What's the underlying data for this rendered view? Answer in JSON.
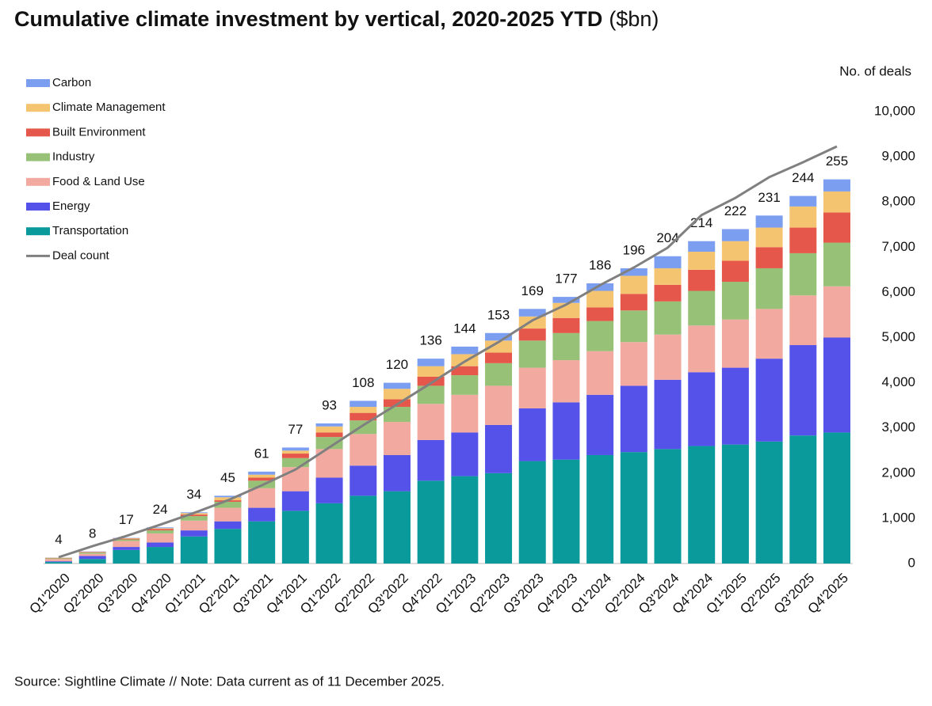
{
  "chart_data": {
    "type": "stacked-bar-line",
    "title": "Cumulative climate investment by vertical, 2020-2025 YTD",
    "unit": "($bn)",
    "y2_label": "No. of deals",
    "source": "Source: Sightline Climate  //  Note: Data current as of 11 December 2025.",
    "categories": [
      "Q1'2020",
      "Q2'2020",
      "Q3'2020",
      "Q4'2020",
      "Q1'2021",
      "Q2'2021",
      "Q3'2021",
      "Q4'2021",
      "Q1'2022",
      "Q2'2022",
      "Q3'2022",
      "Q4'2022",
      "Q1'2023",
      "Q2'2023",
      "Q3'2023",
      "Q4'2023",
      "Q1'2024",
      "Q2'2024",
      "Q3'2024",
      "Q4'2024",
      "Q1'2025",
      "Q2'2025",
      "Q3'2025",
      "Q4'2025"
    ],
    "series": [
      {
        "name": "Transportation",
        "color": "#0a9a9c",
        "values": [
          1,
          3,
          9,
          11,
          18,
          23,
          28,
          35,
          40,
          45,
          48,
          55,
          58,
          60,
          68,
          69,
          72,
          74,
          76,
          78,
          79,
          81,
          85,
          87
        ]
      },
      {
        "name": "Energy",
        "color": "#5552ea",
        "values": [
          0.5,
          2,
          2,
          3,
          4,
          5,
          9,
          13,
          17,
          20,
          24,
          27,
          29,
          32,
          35,
          38,
          40,
          44,
          46,
          49,
          51,
          55,
          60,
          63
        ]
      },
      {
        "name": "Food & Land Use",
        "color": "#f2a99f",
        "values": [
          1.5,
          1.5,
          4,
          6,
          6.5,
          9,
          13,
          16,
          19,
          21,
          22,
          24,
          25,
          26,
          27,
          28,
          29,
          29,
          30,
          31,
          32,
          33,
          33,
          34
        ]
      },
      {
        "name": "Industry",
        "color": "#97c177",
        "values": [
          0.5,
          0.8,
          1,
          2,
          3,
          4,
          5,
          6,
          8,
          9,
          10,
          12,
          13,
          15,
          18,
          18,
          20,
          21,
          22,
          23,
          25,
          27,
          28,
          29
        ]
      },
      {
        "name": "Built Environment",
        "color": "#e5574a",
        "values": [
          0.2,
          0.3,
          0.5,
          1,
          1,
          1,
          2,
          3,
          3,
          5,
          5,
          6,
          6,
          7,
          8,
          10,
          9,
          11,
          11,
          14,
          14,
          14,
          17,
          20
        ]
      },
      {
        "name": "Climate Management",
        "color": "#f4c471",
        "values": [
          0.2,
          0.2,
          0.3,
          0.5,
          1,
          2,
          2,
          2,
          4,
          4,
          7,
          7,
          8,
          8,
          8,
          10,
          11,
          12,
          11,
          12,
          13,
          13,
          14,
          14
        ]
      },
      {
        "name": "Carbon",
        "color": "#7b9ef0",
        "values": [
          0.1,
          0.2,
          0.2,
          0.5,
          0.5,
          1,
          2,
          2,
          2,
          4,
          4,
          5,
          5,
          5,
          5,
          4,
          5,
          5,
          8,
          7,
          8,
          8,
          7,
          8
        ]
      },
      {
        "name": "Deal count",
        "color": "#808080",
        "axis": "y2",
        "type": "line",
        "values": [
          140,
          385,
          610,
          860,
          1120,
          1400,
          1730,
          2080,
          2570,
          3060,
          3520,
          3990,
          4470,
          4900,
          5380,
          5730,
          6160,
          6550,
          6990,
          7710,
          8090,
          8550,
          8880,
          9230
        ]
      }
    ],
    "totals": [
      4,
      8,
      17,
      24,
      34,
      45,
      61,
      77,
      93,
      108,
      120,
      136,
      144,
      153,
      169,
      177,
      186,
      196,
      204,
      214,
      222,
      231,
      244,
      255
    ],
    "ylim": [
      0,
      300
    ],
    "y2lim": [
      0,
      10000
    ],
    "y2ticks": [
      {
        "value": 0,
        "label": "0"
      },
      {
        "value": 1000,
        "label": "1,000"
      },
      {
        "value": 2000,
        "label": "2,000"
      },
      {
        "value": 3000,
        "label": "3,000"
      },
      {
        "value": 4000,
        "label": "4,000"
      },
      {
        "value": 5000,
        "label": "5,000"
      },
      {
        "value": 6000,
        "label": "6,000"
      },
      {
        "value": 7000,
        "label": "7,000"
      },
      {
        "value": 8000,
        "label": "8,000"
      },
      {
        "value": 9000,
        "label": "9,000"
      },
      {
        "value": 10000,
        "label": "10,000"
      }
    ],
    "legend": "top-left"
  }
}
